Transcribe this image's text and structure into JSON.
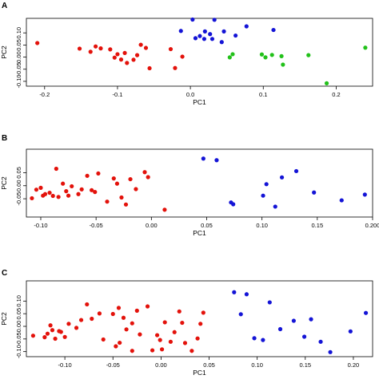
{
  "chart_data": [
    {
      "type": "scatter",
      "panel_label": "A",
      "xlabel": "PC1",
      "ylabel": "PC2",
      "xlim": [
        -0.225,
        0.25
      ],
      "ylim": [
        -0.12,
        0.16
      ],
      "xticks": [
        -0.2,
        -0.1,
        0.0,
        0.1,
        0.2
      ],
      "xtick_labels": [
        "-0.2",
        "-0.1",
        "0.0",
        "0.1",
        "0.2"
      ],
      "yticks": [
        -0.1,
        -0.05,
        0.0,
        0.05,
        0.1
      ],
      "ytick_labels": [
        "-0.10",
        "-0.05",
        "0.00",
        "0.05",
        "0.10"
      ],
      "series": [
        {
          "color": "#e3120b",
          "points": [
            [
              -0.21,
              0.058
            ],
            [
              -0.152,
              0.035
            ],
            [
              -0.137,
              0.022
            ],
            [
              -0.13,
              0.044
            ],
            [
              -0.123,
              0.036
            ],
            [
              -0.11,
              0.032
            ],
            [
              -0.104,
              -0.002
            ],
            [
              -0.1,
              0.012
            ],
            [
              -0.095,
              -0.01
            ],
            [
              -0.09,
              0.017
            ],
            [
              -0.087,
              -0.024
            ],
            [
              -0.078,
              -0.011
            ],
            [
              -0.073,
              0.008
            ],
            [
              -0.068,
              0.051
            ],
            [
              -0.061,
              0.038
            ],
            [
              -0.056,
              -0.046
            ],
            [
              -0.027,
              0.033
            ],
            [
              -0.021,
              -0.045
            ],
            [
              -0.011,
              0.002
            ]
          ]
        },
        {
          "color": "#1414d6",
          "points": [
            [
              -0.013,
              0.108
            ],
            [
              0.003,
              0.155
            ],
            [
              0.007,
              0.078
            ],
            [
              0.013,
              0.087
            ],
            [
              0.019,
              0.075
            ],
            [
              0.02,
              0.106
            ],
            [
              0.027,
              0.095
            ],
            [
              0.03,
              0.075
            ],
            [
              0.033,
              0.154
            ],
            [
              0.046,
              0.106
            ],
            [
              0.043,
              0.062
            ],
            [
              0.062,
              0.089
            ],
            [
              0.077,
              0.127
            ],
            [
              0.114,
              0.112
            ]
          ]
        },
        {
          "color": "#22c11a",
          "points": [
            [
              0.054,
              -0.001
            ],
            [
              0.058,
              0.012
            ],
            [
              0.098,
              0.011
            ],
            [
              0.103,
              -0.001
            ],
            [
              0.112,
              0.009
            ],
            [
              0.127,
              -0.031
            ],
            [
              0.125,
              0.004
            ],
            [
              0.162,
              0.008
            ],
            [
              0.187,
              -0.108
            ],
            [
              0.24,
              0.039
            ]
          ]
        }
      ]
    },
    {
      "type": "scatter",
      "panel_label": "B",
      "xlabel": "PC1",
      "ylabel": "PC2",
      "xlim": [
        -0.113,
        0.2
      ],
      "ylim": [
        -0.12,
        0.14
      ],
      "xticks": [
        -0.1,
        -0.05,
        0.0,
        0.05,
        0.1,
        0.15,
        0.2
      ],
      "xtick_labels": [
        "-0.10",
        "-0.05",
        "0.00",
        "0.05",
        "0.10",
        "0.15",
        "0.200"
      ],
      "yticks": [
        -0.05,
        0.0,
        0.05
      ],
      "ytick_labels": [
        "-0.05",
        "0.00",
        "0.05"
      ],
      "series": [
        {
          "color": "#e3120b",
          "points": [
            [
              -0.108,
              -0.048
            ],
            [
              -0.104,
              -0.015
            ],
            [
              -0.1,
              -0.008
            ],
            [
              -0.098,
              -0.038
            ],
            [
              -0.096,
              -0.032
            ],
            [
              -0.092,
              -0.027
            ],
            [
              -0.089,
              -0.039
            ],
            [
              -0.086,
              0.065
            ],
            [
              -0.084,
              -0.043
            ],
            [
              -0.08,
              0.008
            ],
            [
              -0.077,
              -0.021
            ],
            [
              -0.075,
              -0.038
            ],
            [
              -0.072,
              -0.002
            ],
            [
              -0.066,
              -0.032
            ],
            [
              -0.063,
              -0.014
            ],
            [
              -0.058,
              0.038
            ],
            [
              -0.054,
              -0.017
            ],
            [
              -0.051,
              -0.024
            ],
            [
              -0.048,
              0.047
            ],
            [
              -0.04,
              -0.061
            ],
            [
              -0.034,
              0.028
            ],
            [
              -0.031,
              0.008
            ],
            [
              -0.027,
              -0.045
            ],
            [
              -0.023,
              -0.072
            ],
            [
              -0.019,
              0.025
            ],
            [
              -0.014,
              -0.013
            ],
            [
              -0.006,
              0.052
            ],
            [
              -0.003,
              0.033
            ],
            [
              0.012,
              -0.092
            ]
          ]
        },
        {
          "color": "#1414d6",
          "points": [
            [
              0.047,
              0.104
            ],
            [
              0.059,
              0.098
            ],
            [
              0.072,
              -0.064
            ],
            [
              0.074,
              -0.071
            ],
            [
              0.101,
              -0.038
            ],
            [
              0.104,
              0.006
            ],
            [
              0.112,
              -0.08
            ],
            [
              0.118,
              0.032
            ],
            [
              0.131,
              0.056
            ],
            [
              0.147,
              -0.026
            ],
            [
              0.172,
              -0.056
            ],
            [
              0.193,
              -0.034
            ]
          ]
        }
      ]
    },
    {
      "type": "scatter",
      "panel_label": "C",
      "xlabel": "PC1",
      "ylabel": "PC2",
      "xlim": [
        -0.14,
        0.22
      ],
      "ylim": [
        -0.12,
        0.18
      ],
      "xticks": [
        -0.1,
        -0.05,
        0.0,
        0.05,
        0.1,
        0.15,
        0.2
      ],
      "xtick_labels": [
        "-0.10",
        "-0.05",
        "0.00",
        "0.05",
        "0.10",
        "0.15",
        "0.20"
      ],
      "yticks": [
        -0.1,
        -0.05,
        0.0,
        0.05,
        0.1
      ],
      "ytick_labels": [
        "-0.10",
        "-0.05",
        "0.00",
        "0.05",
        "0.10"
      ],
      "series": [
        {
          "color": "#e3120b",
          "points": [
            [
              -0.133,
              -0.037
            ],
            [
              -0.121,
              -0.043
            ],
            [
              -0.118,
              -0.029
            ],
            [
              -0.115,
              0.004
            ],
            [
              -0.113,
              -0.015
            ],
            [
              -0.11,
              -0.049
            ],
            [
              -0.106,
              -0.019
            ],
            [
              -0.104,
              -0.022
            ],
            [
              -0.1,
              -0.042
            ],
            [
              -0.096,
              0.01
            ],
            [
              -0.088,
              -0.006
            ],
            [
              -0.083,
              0.025
            ],
            [
              -0.077,
              0.087
            ],
            [
              -0.072,
              0.03
            ],
            [
              -0.064,
              0.051
            ],
            [
              -0.06,
              -0.052
            ],
            [
              -0.05,
              0.049
            ],
            [
              -0.047,
              -0.079
            ],
            [
              -0.044,
              0.073
            ],
            [
              -0.043,
              -0.065
            ],
            [
              -0.039,
              0.034
            ],
            [
              -0.036,
              -0.012
            ],
            [
              -0.03,
              -0.097
            ],
            [
              -0.03,
              0.012
            ],
            [
              -0.025,
              0.062
            ],
            [
              -0.022,
              -0.032
            ],
            [
              -0.014,
              0.079
            ],
            [
              -0.009,
              -0.095
            ],
            [
              -0.004,
              -0.035
            ],
            [
              -0.001,
              -0.054
            ],
            [
              0.001,
              -0.091
            ],
            [
              0.004,
              0.016
            ],
            [
              0.01,
              -0.061
            ],
            [
              0.014,
              -0.023
            ],
            [
              0.019,
              0.059
            ],
            [
              0.022,
              0.014
            ],
            [
              0.025,
              -0.066
            ],
            [
              0.032,
              -0.097
            ],
            [
              0.038,
              -0.048
            ],
            [
              0.041,
              0.01
            ],
            [
              0.044,
              0.054
            ]
          ]
        },
        {
          "color": "#1414d6",
          "points": [
            [
              0.076,
              0.135
            ],
            [
              0.083,
              0.048
            ],
            [
              0.089,
              0.127
            ],
            [
              0.097,
              -0.047
            ],
            [
              0.106,
              -0.054
            ],
            [
              0.113,
              0.095
            ],
            [
              0.124,
              -0.011
            ],
            [
              0.138,
              0.022
            ],
            [
              0.149,
              -0.041
            ],
            [
              0.156,
              0.028
            ],
            [
              0.166,
              -0.061
            ],
            [
              0.176,
              -0.102
            ],
            [
              0.197,
              -0.02
            ],
            [
              0.213,
              0.053
            ]
          ]
        }
      ]
    }
  ]
}
